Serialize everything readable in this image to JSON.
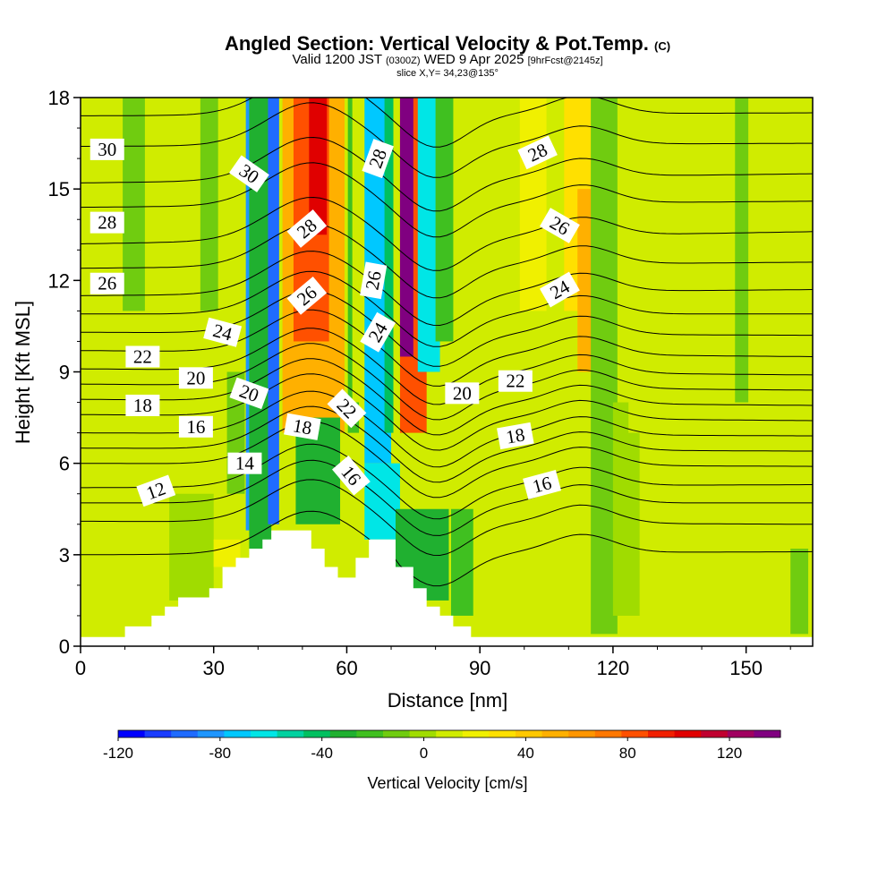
{
  "titles": {
    "main": "Angled Section: Vertical Velocity & Pot.Temp.",
    "main_mark": "(C)",
    "line2_a": "Valid 1200 JST",
    "line2_b": "(0300Z)",
    "line2_c": "WED 9 Apr 2025",
    "line2_d": "[9hrFcst@2145z]",
    "line3": "slice X,Y= 34,23@135°"
  },
  "chart_data": {
    "type": "heatmap",
    "xlabel": "Distance [nm]",
    "ylabel": "Height [Kft MSL]",
    "xlim": [
      0,
      165
    ],
    "ylim": [
      0,
      18
    ],
    "x_ticks": [
      0,
      30,
      60,
      90,
      120,
      150
    ],
    "y_ticks": [
      0,
      3,
      6,
      9,
      12,
      15,
      18
    ],
    "colorbar": {
      "label": "Vertical Velocity [cm/s]",
      "ticks": [
        -120,
        -80,
        -40,
        0,
        40,
        80,
        120
      ],
      "range": [
        -120,
        140
      ],
      "colors": [
        "#0000ff",
        "#1a3cff",
        "#1f6bff",
        "#1e96ff",
        "#00c8ff",
        "#00e6e6",
        "#00d2a0",
        "#00c060",
        "#20b030",
        "#40c020",
        "#70cc10",
        "#a0dc00",
        "#d0ec00",
        "#f0f000",
        "#ffe000",
        "#ffc800",
        "#ffb000",
        "#ff9600",
        "#ff7800",
        "#ff5000",
        "#f02000",
        "#e00000",
        "#c00030",
        "#a00060",
        "#800080"
      ]
    },
    "terrain_profile": [
      [
        0,
        0.3
      ],
      [
        10,
        0.3
      ],
      [
        10,
        0.65
      ],
      [
        16,
        0.65
      ],
      [
        16,
        1.0
      ],
      [
        19,
        1.0
      ],
      [
        19,
        1.3
      ],
      [
        22,
        1.3
      ],
      [
        22,
        1.6
      ],
      [
        29,
        1.6
      ],
      [
        29,
        1.9
      ],
      [
        32,
        1.9
      ],
      [
        32,
        2.6
      ],
      [
        35,
        2.6
      ],
      [
        35,
        2.9
      ],
      [
        38,
        2.9
      ],
      [
        38,
        3.2
      ],
      [
        41,
        3.2
      ],
      [
        41,
        3.5
      ],
      [
        43,
        3.5
      ],
      [
        43,
        3.8
      ],
      [
        52,
        3.8
      ],
      [
        52,
        3.2
      ],
      [
        55,
        3.2
      ],
      [
        55,
        2.6
      ],
      [
        58,
        2.6
      ],
      [
        58,
        2.25
      ],
      [
        62,
        2.25
      ],
      [
        62,
        2.9
      ],
      [
        65,
        2.9
      ],
      [
        65,
        3.5
      ],
      [
        71,
        3.5
      ],
      [
        71,
        2.6
      ],
      [
        75,
        2.6
      ],
      [
        75,
        1.9
      ],
      [
        78,
        1.9
      ],
      [
        78,
        1.3
      ],
      [
        81,
        1.3
      ],
      [
        81,
        1.0
      ],
      [
        84,
        1.0
      ],
      [
        84,
        0.65
      ],
      [
        88,
        0.65
      ],
      [
        88,
        0.3
      ],
      [
        165,
        0.3
      ]
    ],
    "w_columns": [
      {
        "x": 38.5,
        "width": 2.5,
        "z0": 3.8,
        "z1": 18,
        "w": -80
      },
      {
        "x": 40.5,
        "width": 5,
        "z0": 3.0,
        "z1": 18,
        "w": -30
      },
      {
        "x": 43.5,
        "width": 2.5,
        "z0": 4.0,
        "z1": 18,
        "w": -95
      },
      {
        "x": 52.5,
        "width": 14,
        "z0": 7.0,
        "z1": 18,
        "w": 50
      },
      {
        "x": 52.0,
        "width": 8,
        "z0": 10.0,
        "z1": 18,
        "w": 80
      },
      {
        "x": 53.5,
        "width": 4,
        "z0": 13.5,
        "z1": 18,
        "w": 100
      },
      {
        "x": 53.5,
        "width": 10,
        "z0": 4.0,
        "z1": 7.5,
        "w": -30
      },
      {
        "x": 61.5,
        "width": 2.5,
        "z0": 7.0,
        "z1": 18,
        "w": -20
      },
      {
        "x": 62.5,
        "width": 2.5,
        "z0": 8.0,
        "z1": 18,
        "w": 10
      },
      {
        "x": 67.0,
        "width": 6,
        "z0": 6.0,
        "z1": 18,
        "w": -75
      },
      {
        "x": 69.5,
        "width": 2,
        "z0": 7.0,
        "z1": 18,
        "w": -40
      },
      {
        "x": 75.0,
        "width": 6,
        "z0": 7.0,
        "z1": 18,
        "w": 85
      },
      {
        "x": 73.5,
        "width": 3,
        "z0": 9.5,
        "z1": 18,
        "w": 130
      },
      {
        "x": 78.5,
        "width": 5,
        "z0": 9.0,
        "z1": 18,
        "w": -60
      },
      {
        "x": 82.0,
        "width": 4,
        "z0": 10.0,
        "z1": 18,
        "w": -20
      },
      {
        "x": 68.0,
        "width": 8,
        "z0": 3.5,
        "z1": 6.0,
        "w": -60
      },
      {
        "x": 77.0,
        "width": 12,
        "z0": 1.5,
        "z1": 4.5,
        "w": -30
      },
      {
        "x": 86.0,
        "width": 5,
        "z0": 1.0,
        "z1": 4.5,
        "w": -20
      },
      {
        "x": 96.0,
        "width": 10,
        "z0": 2.0,
        "z1": 9.0,
        "w": 10
      },
      {
        "x": 102.0,
        "width": 6,
        "z0": 11.0,
        "z1": 18,
        "w": 20
      },
      {
        "x": 112.0,
        "width": 6,
        "z0": 11.0,
        "z1": 18,
        "w": 35
      },
      {
        "x": 114.5,
        "width": 5,
        "z0": 9.0,
        "z1": 15.0,
        "w": 50
      },
      {
        "x": 118.0,
        "width": 6,
        "z0": 0.4,
        "z1": 18,
        "w": -15
      },
      {
        "x": 123.0,
        "width": 6,
        "z0": 1.0,
        "z1": 8.0,
        "w": 0
      },
      {
        "x": 126.0,
        "width": 5,
        "z0": 7.0,
        "z1": 12.0,
        "w": 5
      },
      {
        "x": 140.0,
        "width": 8,
        "z0": 12.0,
        "z1": 18,
        "w": 12
      },
      {
        "x": 149.0,
        "width": 4,
        "z0": 0.4,
        "z1": 3.0,
        "w": 15
      },
      {
        "x": 149.0,
        "width": 3,
        "z0": 8.0,
        "z1": 18,
        "w": -12
      },
      {
        "x": 162.0,
        "width": 4,
        "z0": 0.4,
        "z1": 3.2,
        "w": -10
      },
      {
        "x": 25.0,
        "width": 10,
        "z0": 1.5,
        "z1": 5.0,
        "w": 0
      },
      {
        "x": 12.0,
        "width": 5,
        "z0": 11.0,
        "z1": 18,
        "w": -12
      },
      {
        "x": 29.0,
        "width": 4,
        "z0": 11.0,
        "z1": 18,
        "w": -12
      },
      {
        "x": 35.0,
        "width": 4,
        "z0": 5.0,
        "z1": 9.0,
        "w": -12
      },
      {
        "x": 33.0,
        "width": 6,
        "z0": 2.6,
        "z1": 3.5,
        "w": 20
      }
    ],
    "theta_contours": {
      "levels": [
        11,
        12,
        13,
        14,
        15,
        16,
        17,
        18,
        19,
        20,
        21,
        22,
        23,
        24,
        25,
        26,
        27,
        28,
        29,
        30,
        31
      ],
      "left_z": [
        3.0,
        4.1,
        4.7,
        5.2,
        6.0,
        6.5,
        7.0,
        7.6,
        8.1,
        8.6,
        9.1,
        9.7,
        10.3,
        10.9,
        11.5,
        12.4,
        13.2,
        14.4,
        15.2,
        16.4,
        17.4
      ],
      "right_z": [
        3.1,
        4.0,
        4.7,
        5.3,
        5.9,
        6.4,
        6.9,
        7.4,
        7.9,
        8.4,
        8.9,
        9.5,
        10.2,
        10.9,
        11.7,
        12.6,
        13.6,
        14.6,
        15.5,
        16.5,
        17.5
      ]
    },
    "contour_labels": [
      {
        "text": "30",
        "x": 6,
        "z": 16.3,
        "angle": 0
      },
      {
        "text": "28",
        "x": 6,
        "z": 13.9,
        "angle": 0
      },
      {
        "text": "26",
        "x": 6,
        "z": 11.9,
        "angle": 0
      },
      {
        "text": "22",
        "x": 14,
        "z": 9.5,
        "angle": 0
      },
      {
        "text": "20",
        "x": 26,
        "z": 8.8,
        "angle": 0
      },
      {
        "text": "18",
        "x": 14,
        "z": 7.9,
        "angle": 0
      },
      {
        "text": "16",
        "x": 26,
        "z": 7.2,
        "angle": 0
      },
      {
        "text": "14",
        "x": 37,
        "z": 6.0,
        "angle": 0
      },
      {
        "text": "12",
        "x": 17,
        "z": 5.1,
        "angle": -20
      },
      {
        "text": "30",
        "x": 38,
        "z": 15.5,
        "angle": 35
      },
      {
        "text": "24",
        "x": 32,
        "z": 10.3,
        "angle": 15
      },
      {
        "text": "20",
        "x": 38,
        "z": 8.3,
        "angle": 20
      },
      {
        "text": "28",
        "x": 51,
        "z": 13.7,
        "angle": -40
      },
      {
        "text": "26",
        "x": 51,
        "z": 11.5,
        "angle": -40
      },
      {
        "text": "18",
        "x": 50,
        "z": 7.2,
        "angle": 10
      },
      {
        "text": "28",
        "x": 67,
        "z": 16.0,
        "angle": -70
      },
      {
        "text": "26",
        "x": 66,
        "z": 12.0,
        "angle": -80
      },
      {
        "text": "24",
        "x": 67,
        "z": 10.3,
        "angle": -60
      },
      {
        "text": "22",
        "x": 60,
        "z": 7.8,
        "angle": 45
      },
      {
        "text": "16",
        "x": 61,
        "z": 5.6,
        "angle": 50
      },
      {
        "text": "20",
        "x": 86,
        "z": 8.3,
        "angle": 0
      },
      {
        "text": "22",
        "x": 98,
        "z": 8.7,
        "angle": 0
      },
      {
        "text": "18",
        "x": 98,
        "z": 6.9,
        "angle": -10
      },
      {
        "text": "16",
        "x": 104,
        "z": 5.3,
        "angle": -15
      },
      {
        "text": "28",
        "x": 103,
        "z": 16.2,
        "angle": -25
      },
      {
        "text": "26",
        "x": 108,
        "z": 13.8,
        "angle": 30
      },
      {
        "text": "24",
        "x": 108,
        "z": 11.7,
        "angle": -30
      }
    ]
  }
}
